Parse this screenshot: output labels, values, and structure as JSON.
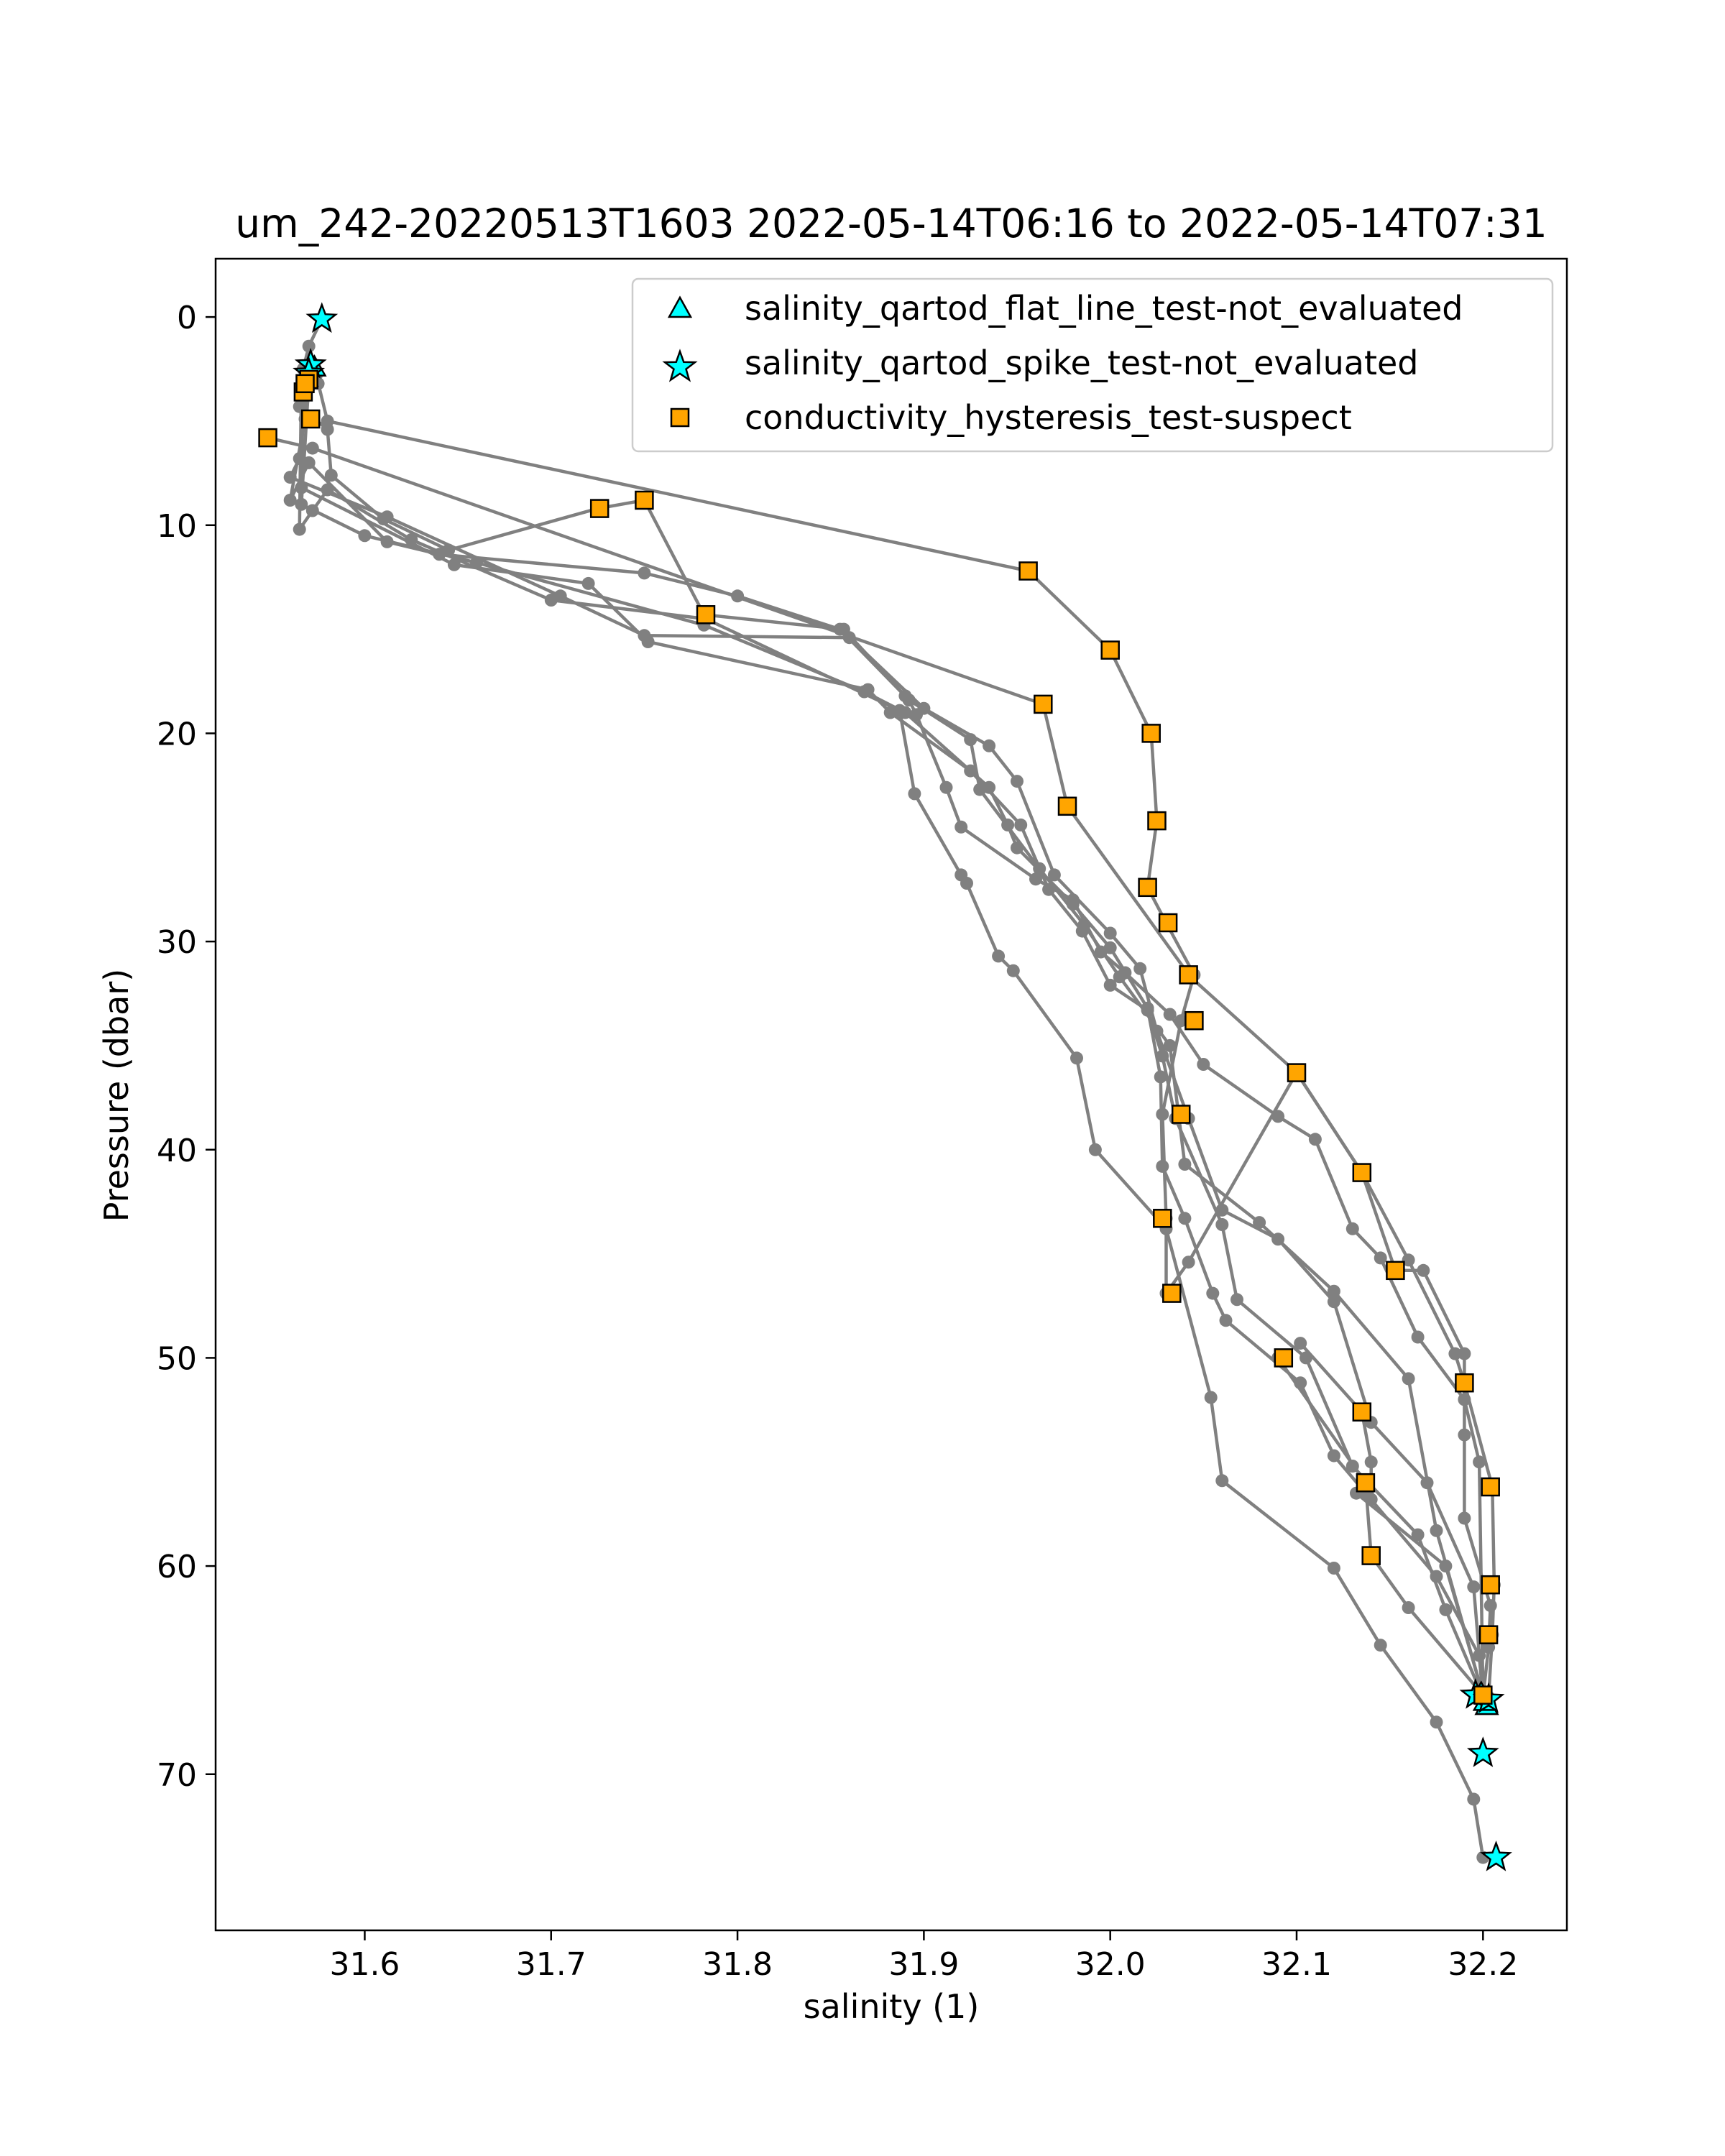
{
  "chart_data": {
    "type": "scatter",
    "title": "um_242-20220513T1603 2022-05-14T06:16 to 2022-05-14T07:31",
    "xlabel": "salinity (1)",
    "ylabel": "Pressure (dbar)",
    "xlim": [
      31.52,
      32.245
    ],
    "ylim": [
      77.5,
      -2.8
    ],
    "y_inverted": true,
    "grid": false,
    "legend_position": "top-right",
    "x_ticks": [
      "31.6",
      "31.7",
      "31.8",
      "31.9",
      "32.0",
      "32.1",
      "32.2"
    ],
    "y_ticks": [
      "0",
      "10",
      "20",
      "30",
      "40",
      "50",
      "60",
      "70"
    ],
    "colors": {
      "profile_line": "#808080",
      "triangle_fill": "#00ffff",
      "star_fill": "#00ffff",
      "square_fill": "#ffa500",
      "marker_edge": "#000000"
    },
    "profiles": [
      {
        "x": [
          31.577,
          31.57,
          31.567,
          31.575,
          31.565,
          31.58,
          31.582,
          31.61,
          31.645,
          31.725,
          31.75,
          31.782,
          31.857,
          31.89,
          31.892,
          31.896,
          31.912,
          31.92,
          31.96,
          31.98,
          31.995,
          32.008,
          32.032,
          32.05,
          32.09,
          32.11,
          32.13,
          32.145,
          32.165,
          32.19,
          32.198,
          32.2
        ],
        "y": [
          0.1,
          1.4,
          2.5,
          3.2,
          4.3,
          5.4,
          7.6,
          9.7,
          11.2,
          9.2,
          8.8,
          14.3,
          15.0,
          18.2,
          18.4,
          19.1,
          22.6,
          24.5,
          27.0,
          28.0,
          30.5,
          31.5,
          33.5,
          35.9,
          38.4,
          39.5,
          43.8,
          45.2,
          49.0,
          52.0,
          55.0,
          66.2
        ]
      },
      {
        "x": [
          31.572,
          31.568,
          31.56,
          31.57,
          31.612,
          31.64,
          31.75,
          31.8,
          31.855,
          31.892,
          31.925,
          31.93,
          31.962,
          31.986,
          32.005,
          32.032,
          32.04,
          32.08,
          32.12,
          32.16,
          32.175,
          32.2
        ],
        "y": [
          2.5,
          4.9,
          8.8,
          7.0,
          10.8,
          11.4,
          12.3,
          13.4,
          15.0,
          18.4,
          20.3,
          22.7,
          26.5,
          29.2,
          31.7,
          35.0,
          40.7,
          43.5,
          46.8,
          51.0,
          58.3,
          66.2
        ]
      },
      {
        "x": [
          31.57,
          31.565,
          31.56,
          31.612,
          31.705,
          31.75,
          31.86,
          31.9,
          31.935,
          31.95,
          31.97,
          32.0,
          32.016,
          32.025,
          32.042,
          32.06,
          32.09,
          32.12,
          32.14,
          32.17,
          32.195,
          32.2
        ],
        "y": [
          3.0,
          6.8,
          7.7,
          9.6,
          13.4,
          15.3,
          15.4,
          18.8,
          20.6,
          22.3,
          26.8,
          29.6,
          31.3,
          34.3,
          38.5,
          42.9,
          44.3,
          47.3,
          53.1,
          56.0,
          61.0,
          66.4
        ]
      },
      {
        "x": [
          31.567,
          31.566,
          31.648,
          31.72,
          31.752,
          31.87,
          31.882,
          31.925,
          31.952,
          31.967,
          31.985,
          32.0,
          32.02,
          32.028,
          32.035,
          32.06,
          32.068,
          32.105,
          32.13,
          32.165,
          32.18,
          32.2
        ],
        "y": [
          3.6,
          8.2,
          11.9,
          12.8,
          15.6,
          17.9,
          19.0,
          21.8,
          24.4,
          27.5,
          29.5,
          32.1,
          33.3,
          35.5,
          38.5,
          43.6,
          47.2,
          50.0,
          55.2,
          58.5,
          62.1,
          66.3
        ]
      },
      {
        "x": [
          31.57,
          31.566,
          31.6,
          31.66,
          31.782,
          31.868,
          31.89,
          31.935,
          31.945,
          31.95,
          31.98,
          32.0,
          32.02,
          32.027,
          32.028,
          32.04,
          32.055,
          32.062,
          32.102,
          32.12,
          32.175,
          32.198,
          32.2
        ],
        "y": [
          3.1,
          9.0,
          10.5,
          11.8,
          14.8,
          18.0,
          19.0,
          22.6,
          24.4,
          25.5,
          28.2,
          30.3,
          33.2,
          36.5,
          40.8,
          43.3,
          46.9,
          48.2,
          51.2,
          54.7,
          60.5,
          64.3,
          66.3
        ]
      },
      {
        "x": [
          31.566,
          31.565,
          31.572,
          31.58,
          31.625,
          31.7,
          31.783,
          31.887,
          31.895,
          31.92,
          31.923,
          31.94,
          31.948,
          31.982,
          31.992,
          32.03,
          32.054,
          32.06,
          32.12,
          32.145,
          32.175,
          32.195,
          32.2
        ],
        "y": [
          3.3,
          10.2,
          9.3,
          8.3,
          10.7,
          13.6,
          14.5,
          18.9,
          22.9,
          26.8,
          27.2,
          30.7,
          31.4,
          35.6,
          40.0,
          43.8,
          51.9,
          55.9,
          60.1,
          63.8,
          67.5,
          71.2,
          74.0
        ]
      },
      {
        "x": [
          31.574,
          31.58,
          31.956,
          32.0,
          32.022,
          32.025,
          32.02,
          32.03,
          32.045,
          32.038,
          32.028,
          32.03,
          32.03,
          32.042,
          32.1,
          32.135,
          32.16,
          32.185,
          32.19,
          32.205,
          32.206,
          32.205,
          32.203
        ],
        "y": [
          2.8,
          5.0,
          12.2,
          16.0,
          20.0,
          24.2,
          27.4,
          29.1,
          31.6,
          33.8,
          38.3,
          43.3,
          46.9,
          45.4,
          36.3,
          41.1,
          45.3,
          49.8,
          51.2,
          56.2,
          60.9,
          63.3,
          66.3
        ]
      },
      {
        "x": [
          31.548,
          31.572,
          31.964,
          31.977,
          32.043,
          32.1,
          32.135,
          32.153,
          32.168,
          32.19,
          32.19,
          32.19,
          32.204,
          32.203,
          32.2
        ],
        "y": [
          5.8,
          6.3,
          18.6,
          23.5,
          31.7,
          36.3,
          41.1,
          45.8,
          45.8,
          49.8,
          53.7,
          57.7,
          61.9,
          63.9,
          66.3
        ]
      },
      {
        "x": [
          32.102,
          32.135,
          32.14,
          32.14,
          32.138,
          32.132,
          32.18,
          32.2
        ],
        "y": [
          49.3,
          52.6,
          55.0,
          56.8,
          56.5,
          56.5,
          60.0,
          66.2
        ]
      },
      {
        "x": [
          32.09,
          32.137,
          32.14,
          32.16,
          32.2
        ],
        "y": [
          50.0,
          56.0,
          59.5,
          62.0,
          66.2
        ]
      }
    ],
    "series": [
      {
        "name": "salinity_qartod_flat_line_test-not_evaluated",
        "marker": "triangle",
        "x": [
          31.573,
          32.199,
          32.202,
          32.201
        ],
        "y": [
          2.4,
          66.1,
          66.7,
          66.5
        ]
      },
      {
        "name": "salinity_qartod_spike_test-not_evaluated",
        "marker": "star",
        "x": [
          31.577,
          31.571,
          31.57,
          32.196,
          32.203,
          32.2,
          32.207
        ],
        "y": [
          0.1,
          2.3,
          2.7,
          66.2,
          66.4,
          69.0,
          74.0
        ]
      },
      {
        "name": "conductivity_hysteresis_test-suspect",
        "marker": "square",
        "x": [
          31.567,
          31.57,
          31.568,
          31.571,
          31.548,
          31.726,
          31.75,
          31.783,
          31.956,
          32.0,
          31.964,
          31.977,
          32.022,
          32.025,
          32.02,
          32.031,
          32.042,
          32.045,
          32.038,
          32.028,
          32.033,
          32.1,
          32.135,
          32.153,
          32.093,
          32.135,
          32.137,
          32.14,
          32.19,
          32.204,
          32.204,
          32.203,
          32.2
        ],
        "y": [
          3.6,
          3.0,
          3.2,
          4.9,
          5.8,
          9.2,
          8.8,
          14.3,
          12.2,
          16.0,
          18.6,
          23.5,
          20.0,
          24.2,
          27.4,
          29.1,
          31.6,
          33.8,
          38.3,
          43.3,
          46.9,
          36.3,
          41.1,
          45.8,
          50.0,
          52.6,
          56.0,
          59.5,
          51.2,
          56.2,
          60.9,
          63.3,
          66.2
        ]
      }
    ]
  }
}
